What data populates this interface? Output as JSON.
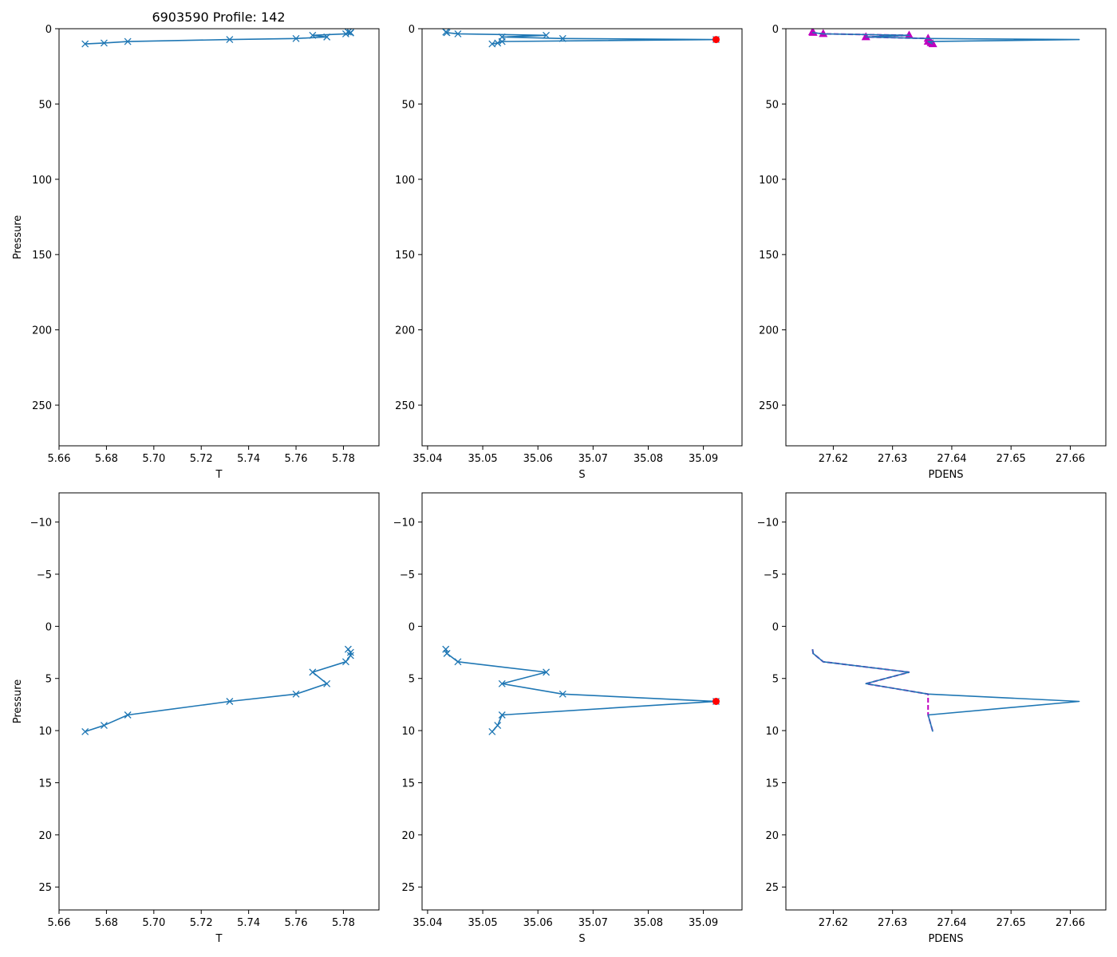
{
  "figure": {
    "title": "6903590 Profile: 142"
  },
  "colors": {
    "series": "#1f77b4",
    "flag": "#ff0000",
    "density_flag": "#bf00bf"
  },
  "chart_data": [
    {
      "id": "t-full",
      "type": "line",
      "marker": "x",
      "xlabel": "T",
      "ylabel": "Pressure",
      "xlim": [
        5.66,
        5.795
      ],
      "ylim": [
        277,
        0
      ],
      "xticks": [
        5.66,
        5.68,
        5.7,
        5.72,
        5.74,
        5.76,
        5.78
      ],
      "xtick_labels": [
        "5.66",
        "5.68",
        "5.70",
        "5.72",
        "5.74",
        "5.76",
        "5.78"
      ],
      "yticks": [
        0,
        50,
        100,
        150,
        200,
        250
      ],
      "ytick_labels": [
        "0",
        "50",
        "100",
        "150",
        "200",
        "250"
      ],
      "x": [
        5.782,
        5.783,
        5.783,
        5.781,
        5.767,
        5.773,
        5.76,
        5.732,
        5.689,
        5.679,
        5.671
      ],
      "y": [
        2.2,
        2.5,
        2.8,
        3.4,
        4.4,
        5.5,
        6.5,
        7.2,
        8.5,
        9.5,
        10.1
      ]
    },
    {
      "id": "s-full",
      "type": "line",
      "marker": "x",
      "xlabel": "S",
      "ylabel": "",
      "xlim": [
        35.039,
        35.097
      ],
      "ylim": [
        277,
        0
      ],
      "xticks": [
        35.04,
        35.05,
        35.06,
        35.07,
        35.08,
        35.09
      ],
      "xtick_labels": [
        "35.04",
        "35.05",
        "35.06",
        "35.07",
        "35.08",
        "35.09"
      ],
      "yticks": [
        0,
        50,
        100,
        150,
        200,
        250
      ],
      "ytick_labels": [
        "0",
        "50",
        "100",
        "150",
        "200",
        "250"
      ],
      "x": [
        35.0433,
        35.0435,
        35.0455,
        35.0615,
        35.0535,
        35.0645,
        35.0923,
        35.0535,
        35.0527,
        35.0517
      ],
      "y": [
        2.2,
        2.6,
        3.4,
        4.4,
        5.5,
        6.5,
        7.2,
        8.5,
        9.5,
        10.1
      ],
      "flagged": [
        {
          "x": 35.0923,
          "y": 7.2
        }
      ]
    },
    {
      "id": "pdens-full",
      "type": "line",
      "marker": "none",
      "xlabel": "PDENS",
      "ylabel": "",
      "xlim": [
        27.612,
        27.666
      ],
      "ylim": [
        277,
        0
      ],
      "xticks": [
        27.62,
        27.63,
        27.64,
        27.65,
        27.66
      ],
      "xtick_labels": [
        "27.62",
        "27.63",
        "27.64",
        "27.65",
        "27.66"
      ],
      "yticks": [
        0,
        50,
        100,
        150,
        200,
        250
      ],
      "ytick_labels": [
        "0",
        "50",
        "100",
        "150",
        "200",
        "250"
      ],
      "x": [
        27.6165,
        27.6166,
        27.6183,
        27.6328,
        27.6255,
        27.636,
        27.6615,
        27.636,
        27.6365,
        27.6368
      ],
      "y": [
        2.2,
        2.6,
        3.4,
        4.4,
        5.5,
        6.5,
        7.2,
        8.5,
        9.5,
        10.1
      ],
      "flag_x": [
        27.6165,
        27.6166,
        27.6183,
        27.6328,
        27.6255,
        27.636,
        27.636,
        27.6365,
        27.6368
      ],
      "flag_y": [
        2.2,
        2.6,
        3.4,
        4.4,
        5.5,
        6.5,
        8.5,
        9.5,
        10.1
      ]
    },
    {
      "id": "t-zoom",
      "type": "line",
      "marker": "x",
      "xlabel": "T",
      "ylabel": "Pressure",
      "xlim": [
        5.66,
        5.795
      ],
      "ylim": [
        27.2,
        -12.8
      ],
      "xticks": [
        5.66,
        5.68,
        5.7,
        5.72,
        5.74,
        5.76,
        5.78
      ],
      "xtick_labels": [
        "5.66",
        "5.68",
        "5.70",
        "5.72",
        "5.74",
        "5.76",
        "5.78"
      ],
      "yticks": [
        -10,
        -5,
        0,
        5,
        10,
        15,
        20,
        25
      ],
      "ytick_labels": [
        "−10",
        "−5",
        "0",
        "5",
        "10",
        "15",
        "20",
        "25"
      ],
      "x": [
        5.782,
        5.783,
        5.783,
        5.781,
        5.767,
        5.773,
        5.76,
        5.732,
        5.689,
        5.679,
        5.671
      ],
      "y": [
        2.2,
        2.5,
        2.8,
        3.4,
        4.4,
        5.5,
        6.5,
        7.2,
        8.5,
        9.5,
        10.1
      ]
    },
    {
      "id": "s-zoom",
      "type": "line",
      "marker": "x",
      "xlabel": "S",
      "ylabel": "",
      "xlim": [
        35.039,
        35.097
      ],
      "ylim": [
        27.2,
        -12.8
      ],
      "xticks": [
        35.04,
        35.05,
        35.06,
        35.07,
        35.08,
        35.09
      ],
      "xtick_labels": [
        "35.04",
        "35.05",
        "35.06",
        "35.07",
        "35.08",
        "35.09"
      ],
      "yticks": [
        -10,
        -5,
        0,
        5,
        10,
        15,
        20,
        25
      ],
      "ytick_labels": [
        "−10",
        "−5",
        "0",
        "5",
        "10",
        "15",
        "20",
        "25"
      ],
      "x": [
        35.0433,
        35.0435,
        35.0455,
        35.0615,
        35.0535,
        35.0645,
        35.0923,
        35.0535,
        35.0527,
        35.0517
      ],
      "y": [
        2.2,
        2.6,
        3.4,
        4.4,
        5.5,
        6.5,
        7.2,
        8.5,
        9.5,
        10.1
      ],
      "flagged": [
        {
          "x": 35.0923,
          "y": 7.2
        }
      ]
    },
    {
      "id": "pdens-zoom",
      "type": "line",
      "marker": "none",
      "xlabel": "PDENS",
      "ylabel": "",
      "xlim": [
        27.612,
        27.666
      ],
      "ylim": [
        27.2,
        -12.8
      ],
      "xticks": [
        27.62,
        27.63,
        27.64,
        27.65,
        27.66
      ],
      "xtick_labels": [
        "27.62",
        "27.63",
        "27.64",
        "27.65",
        "27.66"
      ],
      "yticks": [
        -10,
        -5,
        0,
        5,
        10,
        15,
        20,
        25
      ],
      "ytick_labels": [
        "−10",
        "−5",
        "0",
        "5",
        "10",
        "15",
        "20",
        "25"
      ],
      "x": [
        27.6165,
        27.6166,
        27.6183,
        27.6328,
        27.6255,
        27.636,
        27.6615,
        27.636,
        27.6365,
        27.6368
      ],
      "y": [
        2.2,
        2.6,
        3.4,
        4.4,
        5.5,
        6.5,
        7.2,
        8.5,
        9.5,
        10.1
      ],
      "flag_x": [
        27.6165,
        27.6166,
        27.6183,
        27.6328,
        27.6255,
        27.636,
        27.636,
        27.6365,
        27.6368
      ],
      "flag_y": [
        2.2,
        2.6,
        3.4,
        4.4,
        5.5,
        6.5,
        8.5,
        9.5,
        10.1
      ]
    }
  ]
}
